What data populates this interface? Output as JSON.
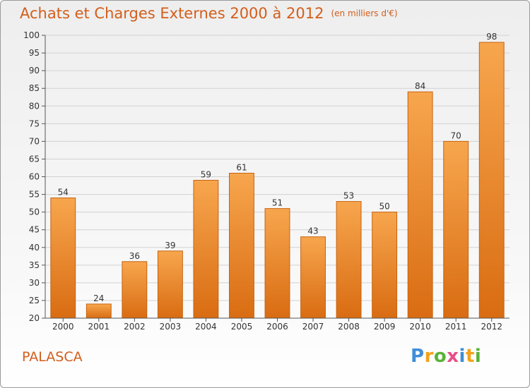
{
  "chart_data": {
    "type": "bar",
    "title": "Achats et Charges Externes 2000 à 2012",
    "subtitle": "(en milliers d'€)",
    "categories": [
      "2000",
      "2001",
      "2002",
      "2003",
      "2004",
      "2005",
      "2006",
      "2007",
      "2008",
      "2009",
      "2010",
      "2011",
      "2012"
    ],
    "values": [
      54,
      24,
      36,
      39,
      59,
      61,
      51,
      43,
      53,
      50,
      84,
      70,
      98
    ],
    "ylim": [
      20,
      100
    ],
    "yticks": [
      20,
      25,
      30,
      35,
      40,
      45,
      50,
      55,
      60,
      65,
      70,
      75,
      80,
      85,
      90,
      95,
      100
    ],
    "grid": true,
    "colors": {
      "bar_top": "#f7a64e",
      "bar_bottom": "#d96c12",
      "bar_edge": "#c7620f"
    }
  },
  "commune": "PALASCA",
  "logo": {
    "letters": [
      "P",
      "r",
      "o",
      "x",
      "i",
      "t",
      "i"
    ],
    "colors": [
      "#3f8ed8",
      "#f3a21a",
      "#59b338",
      "#e84e8a",
      "#3f8ed8",
      "#f3a21a",
      "#59b338"
    ]
  }
}
